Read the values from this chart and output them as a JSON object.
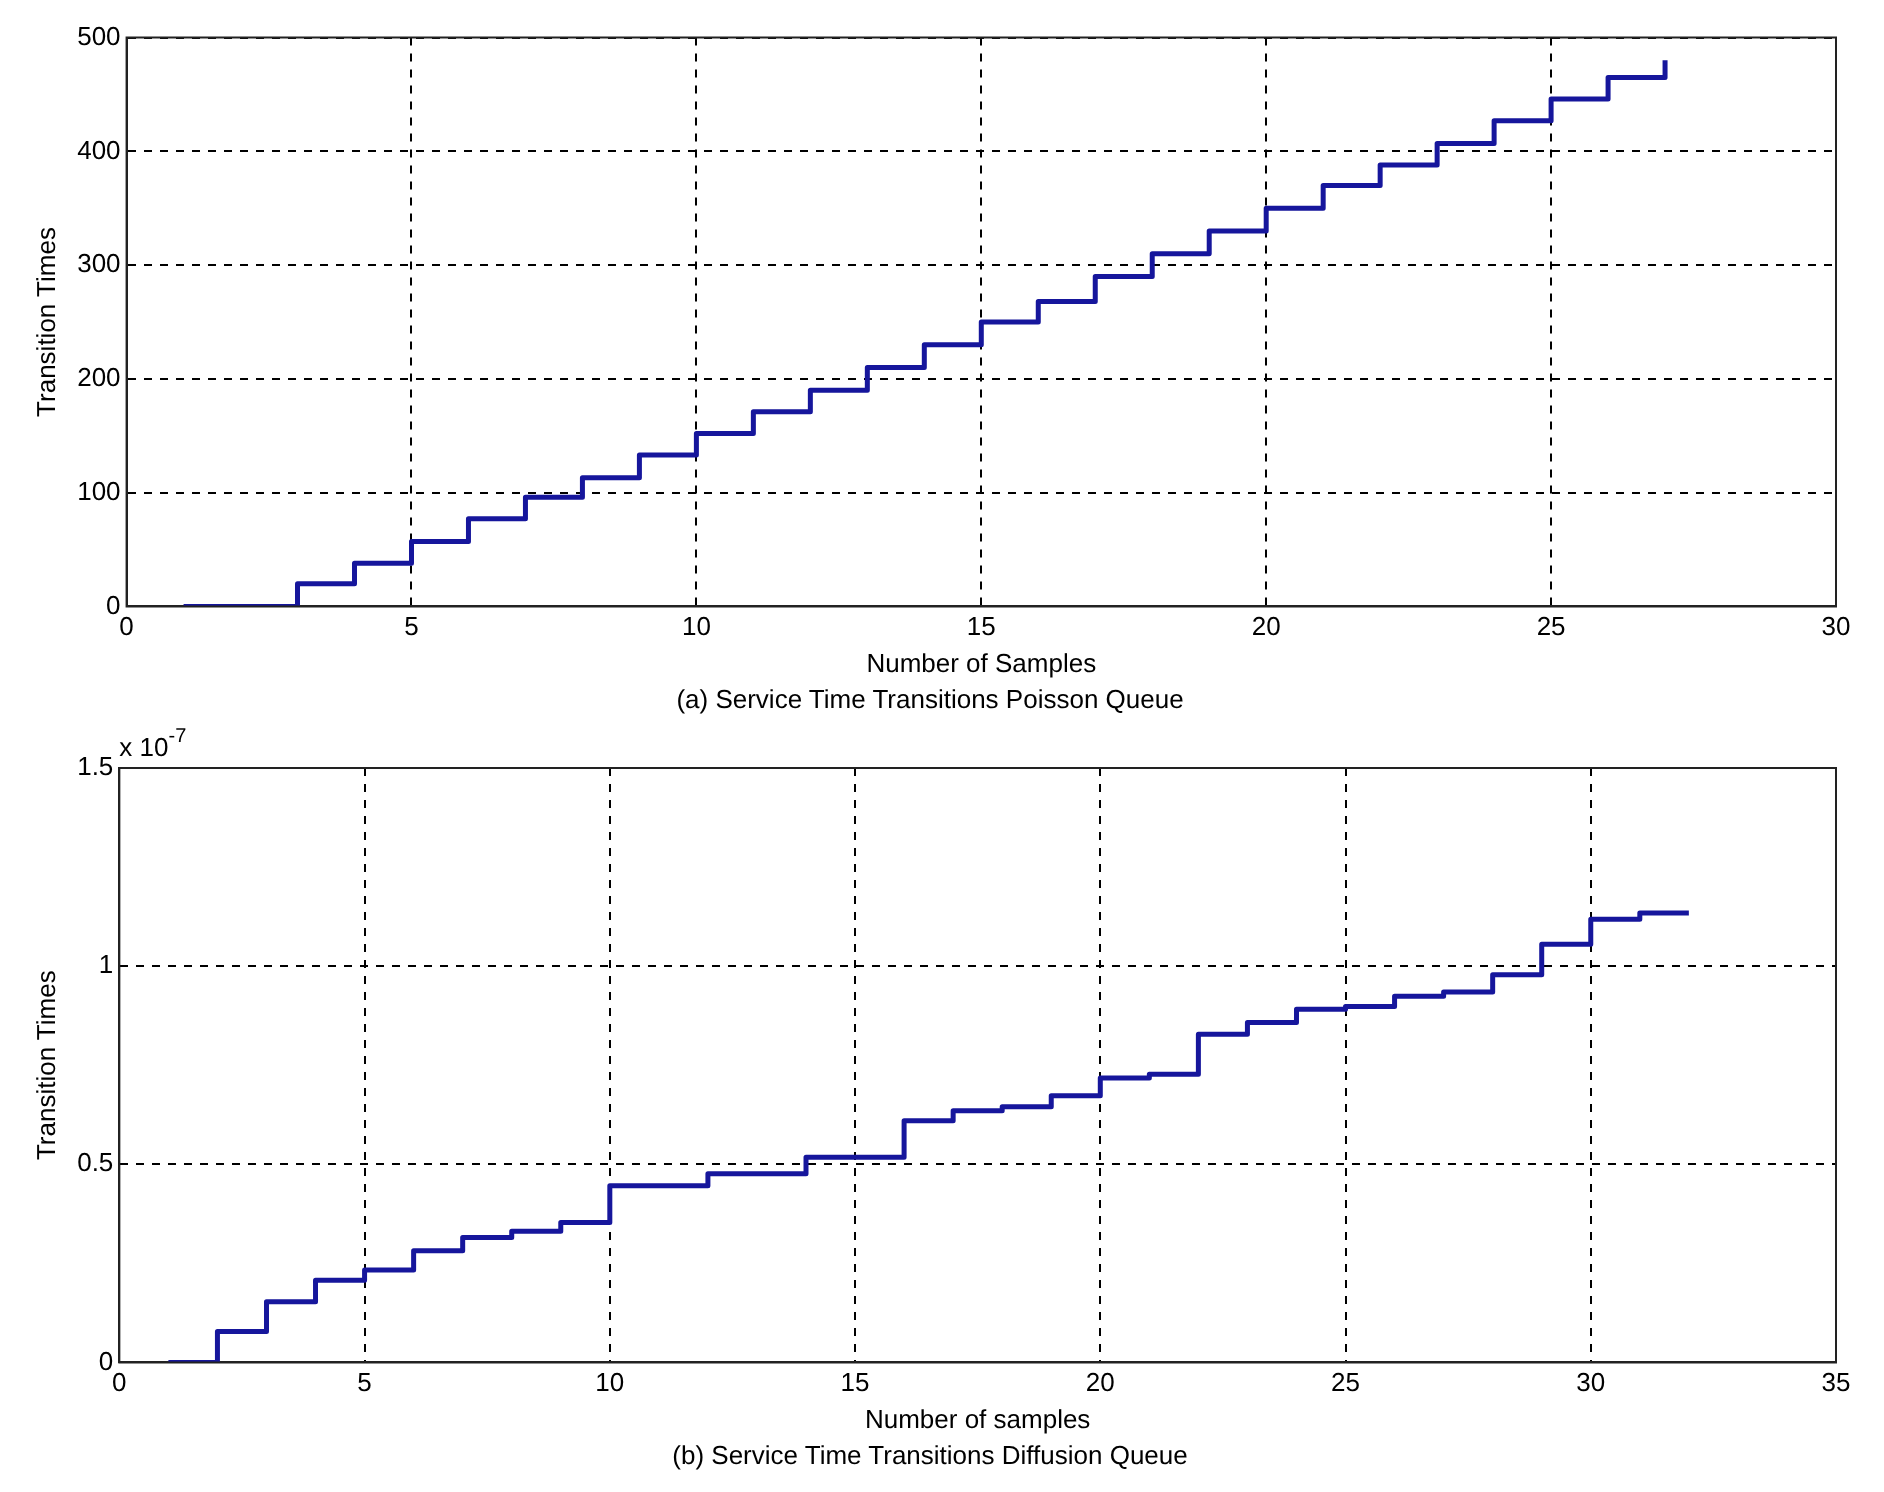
{
  "chart_data": [
    {
      "type": "step",
      "title": "(a) Service Time Transitions Poisson Queue",
      "xlabel": "Number of Samples",
      "ylabel": "Transition Times",
      "x": [
        1,
        2,
        3,
        4,
        5,
        6,
        7,
        8,
        9,
        10,
        11,
        12,
        13,
        14,
        15,
        16,
        17,
        18,
        19,
        20,
        21,
        22,
        23,
        24,
        25,
        26,
        27
      ],
      "series": [
        {
          "color": "#16169c",
          "values": [
            0,
            0,
            20,
            38,
            57,
            77,
            96,
            113,
            133,
            152,
            171,
            190,
            210,
            230,
            250,
            268,
            290,
            310,
            330,
            350,
            370,
            388,
            407,
            427,
            446,
            465,
            480
          ]
        }
      ],
      "xlim": [
        0,
        30
      ],
      "xticks": [
        0,
        5,
        10,
        15,
        20,
        25,
        30
      ],
      "ylim": [
        0,
        500
      ],
      "yticks": [
        0,
        100,
        200,
        300,
        400,
        500
      ],
      "grid": true,
      "legend": false
    },
    {
      "type": "step",
      "title": "(b) Service Time Transitions Diffusion Queue",
      "xlabel": "Number of samples",
      "ylabel": "Transition Times",
      "annotations": [
        "x 10$^{-7}$"
      ],
      "x": [
        1,
        2,
        3,
        4,
        5,
        6,
        7,
        8,
        9,
        10,
        11,
        12,
        13,
        14,
        15,
        16,
        17,
        18,
        19,
        20,
        21,
        22,
        23,
        24,
        25,
        26,
        27,
        28,
        29,
        30,
        31,
        32
      ],
      "series": [
        {
          "color": "#16169c",
          "values": [
            0,
            0.078,
            0.153,
            0.207,
            0.233,
            0.282,
            0.315,
            0.331,
            0.353,
            0.446,
            0.446,
            0.476,
            0.476,
            0.518,
            0.518,
            0.61,
            0.635,
            0.645,
            0.673,
            0.718,
            0.727,
            0.828,
            0.858,
            0.891,
            0.898,
            0.924,
            0.935,
            0.978,
            1.055,
            1.118,
            1.134,
            1.134
          ]
        }
      ],
      "xlim": [
        0,
        35
      ],
      "xticks": [
        0,
        5,
        10,
        15,
        20,
        25,
        30,
        35
      ],
      "ylim": [
        0,
        1.5
      ],
      "yticks": [
        0,
        0.5,
        1,
        1.5
      ],
      "grid": true,
      "legend": false
    }
  ]
}
